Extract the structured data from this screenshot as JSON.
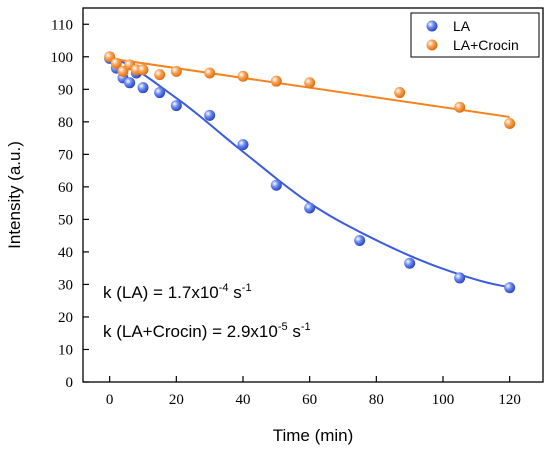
{
  "chart_data": {
    "type": "scatter",
    "xlabel": "Time (min)",
    "ylabel": "Intensity (a.u.)",
    "xlim": [
      -8,
      130
    ],
    "ylim": [
      0,
      115
    ],
    "xticks": [
      0,
      20,
      40,
      60,
      80,
      100,
      120
    ],
    "yticks": [
      0,
      10,
      20,
      30,
      40,
      50,
      60,
      70,
      80,
      90,
      100,
      110
    ],
    "grid": false,
    "legend_position": "top-right",
    "series": [
      {
        "name": "LA",
        "color": "#3a5bdc",
        "x": [
          0,
          2,
          4,
          6,
          8,
          10,
          15,
          20,
          30,
          40,
          50,
          60,
          75,
          90,
          105,
          120
        ],
        "y": [
          99.5,
          96.5,
          93.5,
          92,
          95,
          90.5,
          89,
          85,
          82,
          73,
          60.5,
          53.5,
          43.5,
          36.5,
          32,
          29
        ],
        "fit": {
          "x": [
            0,
            20,
            40,
            60,
            80,
            100,
            120
          ],
          "y": [
            100,
            87.3,
            70.8,
            55.0,
            43.6,
            34.8,
            29.2
          ]
        }
      },
      {
        "name": "LA+Crocin",
        "color": "#f5831f",
        "x": [
          0,
          2,
          4,
          6,
          8,
          10,
          15,
          20,
          30,
          40,
          50,
          60,
          87,
          105,
          120
        ],
        "y": [
          100,
          98,
          95.5,
          97.5,
          96,
          96,
          94.5,
          95.5,
          95,
          94,
          92.5,
          92,
          89,
          84.5,
          79.5
        ],
        "fit": {
          "x": [
            0,
            120
          ],
          "y": [
            99.5,
            81.5
          ]
        }
      }
    ],
    "annotations": [
      {
        "prefix": "k (LA) = 1.7x10",
        "exponent": "-4",
        "space": " ",
        "unit": "s",
        "unit_exponent": "-1"
      },
      {
        "prefix": "k (LA+Crocin) = 2.9x10",
        "exponent": "-5",
        "space": " ",
        "unit": "s",
        "unit_exponent": "-1"
      }
    ]
  }
}
